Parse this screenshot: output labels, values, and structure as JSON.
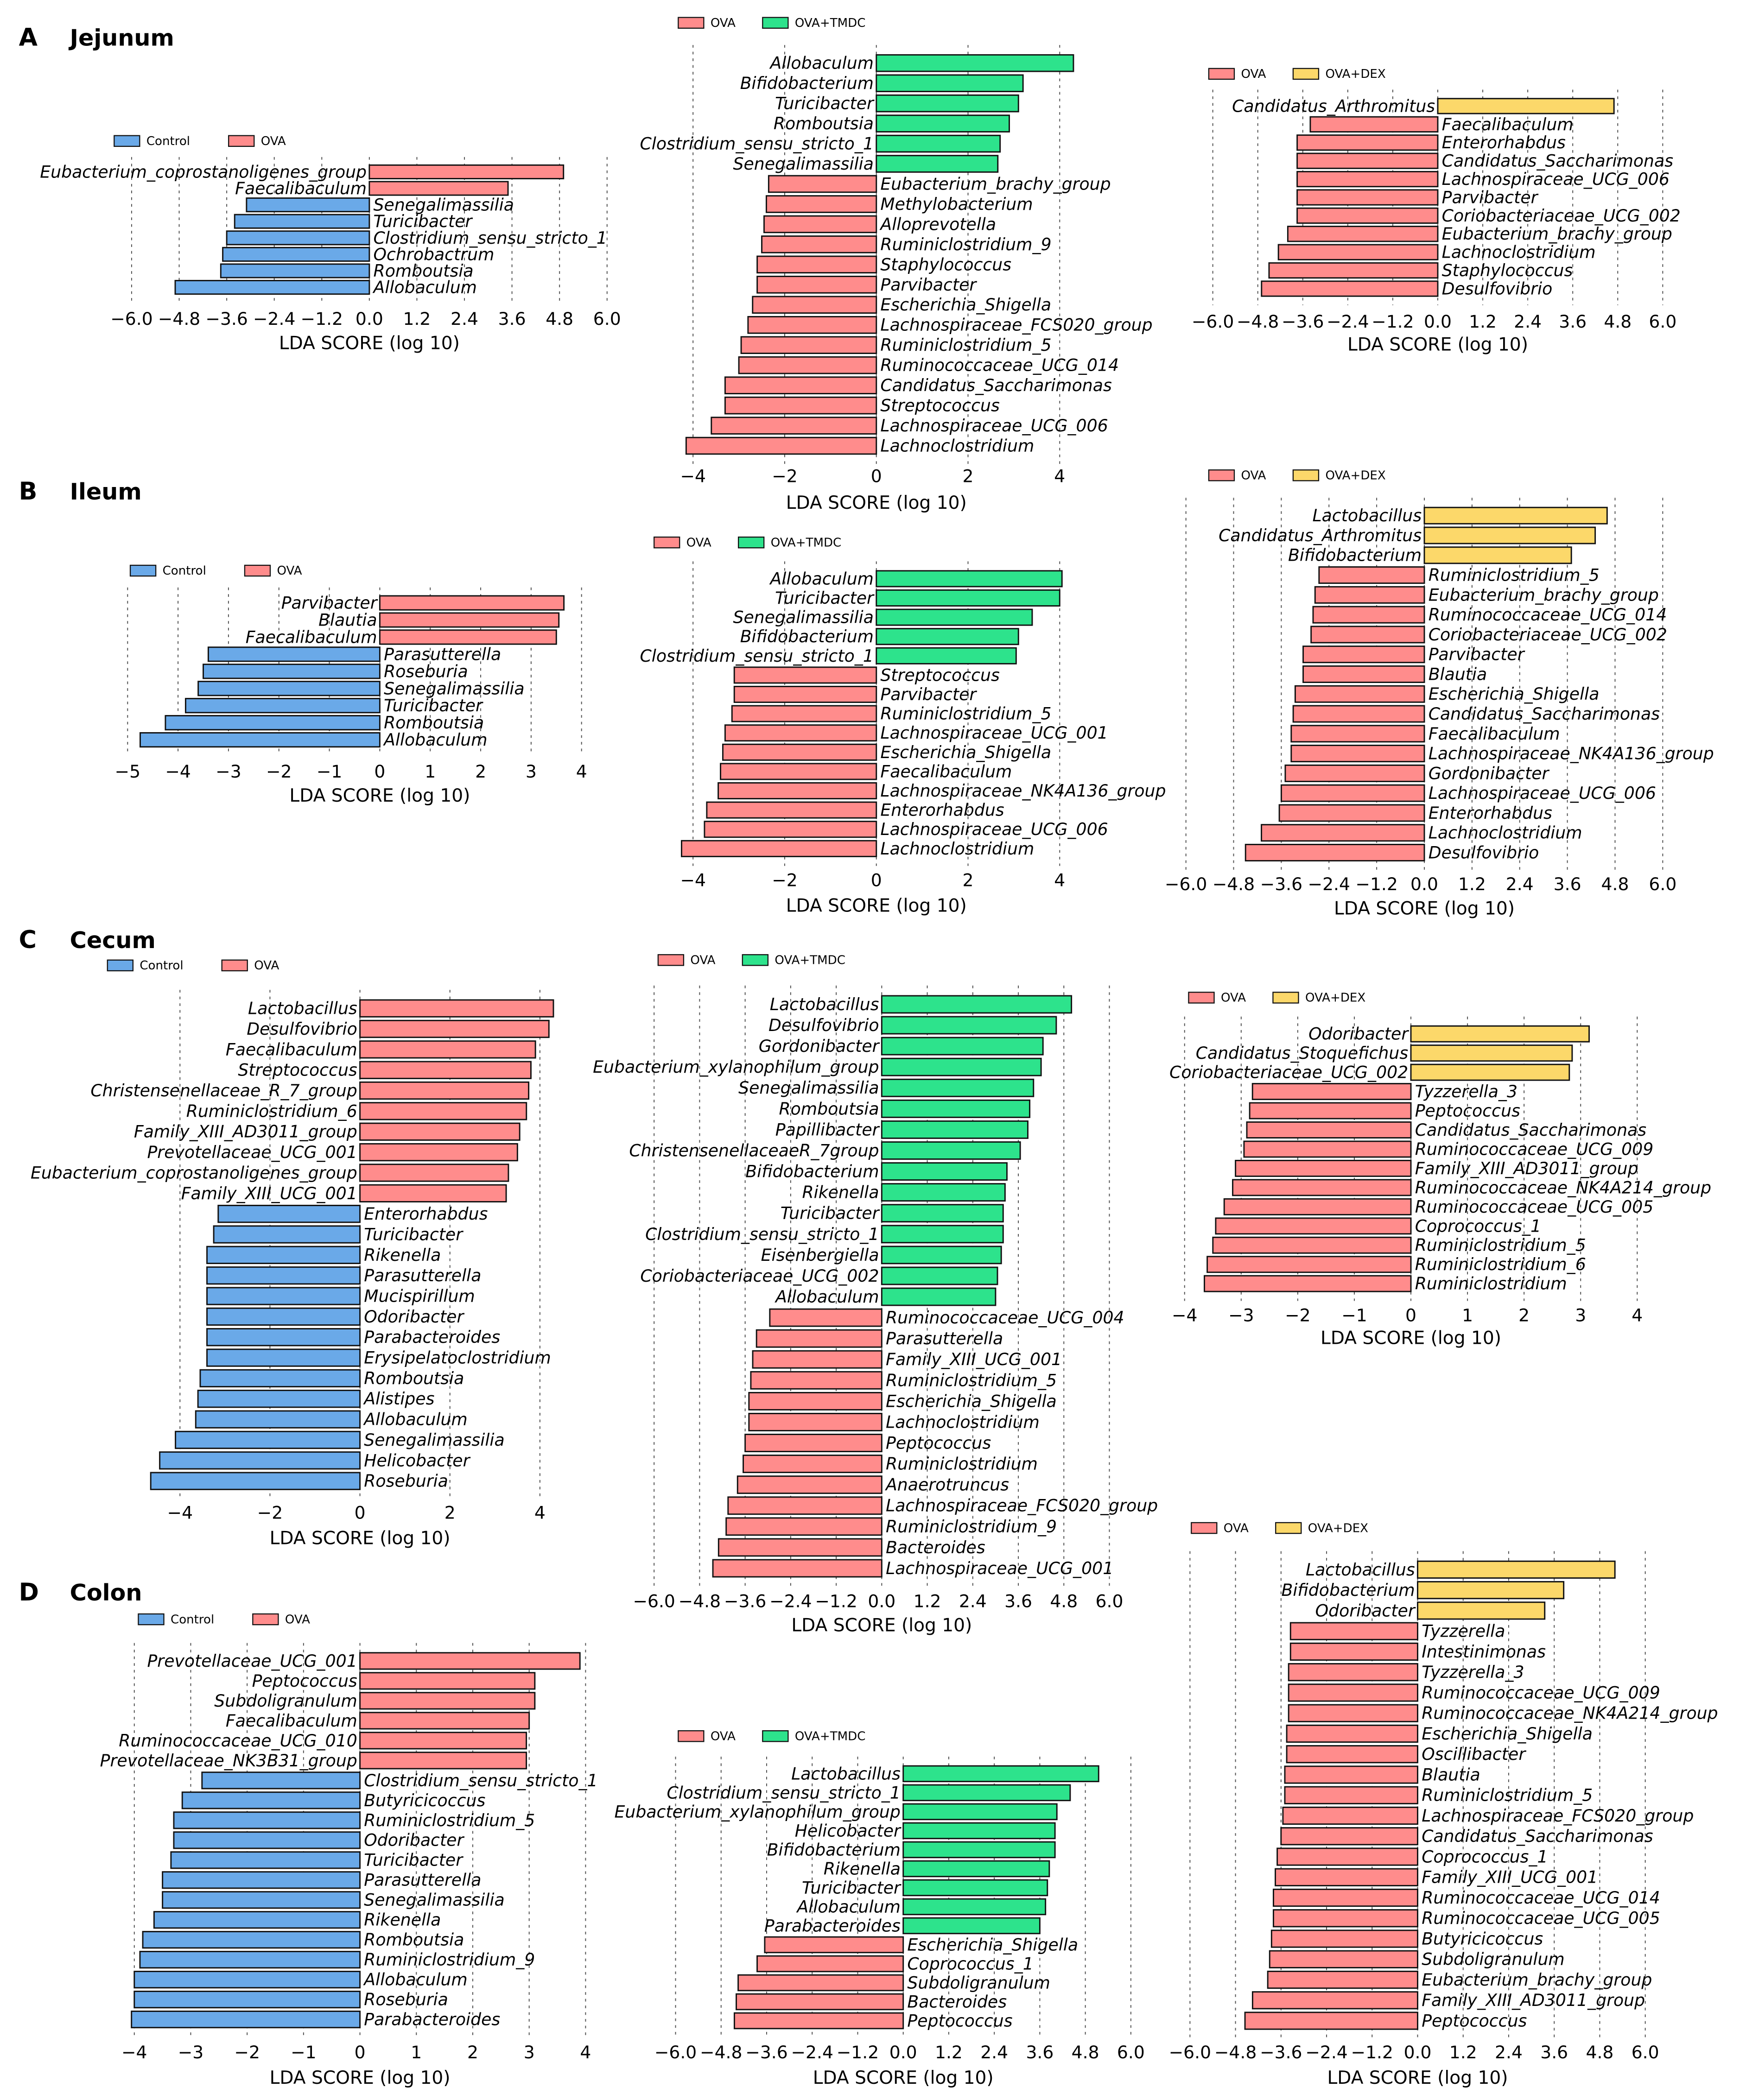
{
  "sections": [
    {
      "letter": "A",
      "name": "Jejunum"
    },
    {
      "letter": "B",
      "name": "Ileum"
    },
    {
      "letter": "C",
      "name": "Cecum"
    },
    {
      "letter": "D",
      "name": "Colon"
    }
  ],
  "colors": {
    "Control": "#6aa9e8",
    "OVA": "#ff8c8c",
    "OVA+TMDC": "#2de38c",
    "OVA+DEX": "#fcd86a"
  },
  "chart_data": [
    {
      "type": "bar",
      "section": "A",
      "legend": [
        "Control",
        "OVA"
      ],
      "xlabel": "LDA SCORE (log 10)",
      "ticks": [
        -6,
        -4.8,
        -3.6,
        -2.4,
        -1.2,
        0,
        1.2,
        2.4,
        3.6,
        4.8,
        6
      ],
      "tick_labels": [
        "−6.0",
        "−4.8",
        "−3.6",
        "−2.4",
        "−1.2",
        "0.0",
        "1.2",
        "2.4",
        "3.6",
        "4.8",
        "6.0"
      ],
      "categories": [
        "Eubacterium_coprostanoligenes_group",
        "Faecalibaculum",
        "Senegalimassilia",
        "Turicibacter",
        "Clostridium_sensu_stricto_1",
        "Ochrobactrum",
        "Romboutsia",
        "Allobaculum"
      ],
      "values": [
        4.9,
        3.5,
        -3.1,
        -3.4,
        -3.6,
        -3.7,
        -3.75,
        -4.9
      ]
    },
    {
      "type": "bar",
      "section": "A",
      "legend": [
        "OVA",
        "OVA+TMDC"
      ],
      "xlabel": "LDA SCORE (log 10)",
      "ticks": [
        -4,
        -2,
        0,
        2,
        4
      ],
      "tick_labels": [
        "−4",
        "−2",
        "0",
        "2",
        "4"
      ],
      "categories": [
        "Allobaculum",
        "Bifidobacterium",
        "Turicibacter",
        "Romboutsia",
        "Clostridium_sensu_stricto_1",
        "Senegalimassilia",
        "Eubacterium_brachy_group",
        "Methylobacterium",
        "Alloprevotella",
        "Ruminiclostridium_9",
        "Staphylococcus",
        "Parvibacter",
        "Escherichia_Shigella",
        "Lachnospiraceae_FCS020_group",
        "Ruminiclostridium_5",
        "Ruminococcaceae_UCG_014",
        "Candidatus_Saccharimonas",
        "Streptococcus",
        "Lachnospiraceae_UCG_006",
        "Lachnoclostridium"
      ],
      "values": [
        4.3,
        3.2,
        3.1,
        2.9,
        2.7,
        2.65,
        -2.35,
        -2.4,
        -2.45,
        -2.5,
        -2.6,
        -2.6,
        -2.7,
        -2.8,
        -2.95,
        -3.0,
        -3.3,
        -3.3,
        -3.6,
        -4.15
      ]
    },
    {
      "type": "bar",
      "section": "A",
      "legend": [
        "OVA",
        "OVA+DEX"
      ],
      "xlabel": "LDA SCORE (log 10)",
      "ticks": [
        -6,
        -4.8,
        -3.6,
        -2.4,
        -1.2,
        0,
        1.2,
        2.4,
        3.6,
        4.8,
        6
      ],
      "tick_labels": [
        "−6.0",
        "−4.8",
        "−3.6",
        "−2.4",
        "−1.2",
        "0.0",
        "1.2",
        "2.4",
        "3.6",
        "4.8",
        "6.0"
      ],
      "categories": [
        "Candidatus_Arthromitus",
        "Faecalibaculum",
        "Enterorhabdus",
        "Candidatus_Saccharimonas",
        "Lachnospiraceae_UCG_006",
        "Parvibacter",
        "Coriobacteriaceae_UCG_002",
        "Eubacterium_brachy_group",
        "Lachnoclostridium",
        "Staphylococcus",
        "Desulfovibrio"
      ],
      "values": [
        4.7,
        -3.4,
        -3.75,
        -3.75,
        -3.75,
        -3.75,
        -3.75,
        -4.0,
        -4.25,
        -4.5,
        -4.7
      ]
    },
    {
      "type": "bar",
      "section": "B",
      "legend": [
        "Control",
        "OVA"
      ],
      "xlabel": "LDA SCORE (log 10)",
      "ticks": [
        -5,
        -4,
        -3,
        -2,
        -1,
        0,
        1,
        2,
        3,
        4
      ],
      "tick_labels": [
        "−5",
        "−4",
        "−3",
        "−2",
        "−1",
        "0",
        "1",
        "2",
        "3",
        "4"
      ],
      "categories": [
        "Parvibacter",
        "Blautia",
        "Faecalibaculum",
        "Parasutterella",
        "Roseburia",
        "Senegalimassilia",
        "Turicibacter",
        "Romboutsia",
        "Allobaculum"
      ],
      "values": [
        3.65,
        3.55,
        3.5,
        -3.4,
        -3.5,
        -3.6,
        -3.85,
        -4.25,
        -4.75
      ]
    },
    {
      "type": "bar",
      "section": "B",
      "legend": [
        "OVA",
        "OVA+TMDC"
      ],
      "xlabel": "LDA SCORE (log 10)",
      "ticks": [
        -4,
        -2,
        0,
        2,
        4
      ],
      "tick_labels": [
        "−4",
        "−2",
        "0",
        "2",
        "4"
      ],
      "categories": [
        "Allobaculum",
        "Turicibacter",
        "Senegalimassilia",
        "Bifidobacterium",
        "Clostridium_sensu_stricto_1",
        "Streptococcus",
        "Parvibacter",
        "Ruminiclostridium_5",
        "Lachnospiraceae_UCG_001",
        "Escherichia_Shigella",
        "Faecalibaculum",
        "Lachnospiraceae_NK4A136_group",
        "Enterorhabdus",
        "Lachnospiraceae_UCG_006",
        "Lachnoclostridium"
      ],
      "values": [
        4.05,
        4.0,
        3.4,
        3.1,
        3.05,
        -3.1,
        -3.1,
        -3.15,
        -3.3,
        -3.35,
        -3.4,
        -3.45,
        -3.7,
        -3.75,
        -4.25
      ]
    },
    {
      "type": "bar",
      "section": "B",
      "legend": [
        "OVA",
        "OVA+DEX"
      ],
      "xlabel": "LDA SCORE (log 10)",
      "ticks": [
        -6,
        -4.8,
        -3.6,
        -2.4,
        -1.2,
        0,
        1.2,
        2.4,
        3.6,
        4.8,
        6
      ],
      "tick_labels": [
        "−6.0",
        "−4.8",
        "−3.6",
        "−2.4",
        "−1.2",
        "0.0",
        "1.2",
        "2.4",
        "3.6",
        "4.8",
        "6.0"
      ],
      "categories": [
        "Lactobacillus",
        "Candidatus_Arthromitus",
        "Bifidobacterium",
        "Ruminiclostridium_5",
        "Eubacterium_brachy_group",
        "Ruminococcaceae_UCG_014",
        "Coriobacteriaceae_UCG_002",
        "Parvibacter",
        "Blautia",
        "Escherichia_Shigella",
        "Candidatus_Saccharimonas",
        "Faecalibaculum",
        "Lachnospiraceae_NK4A136_group",
        "Gordonibacter",
        "Lachnospiraceae_UCG_006",
        "Enterorhabdus",
        "Lachnoclostridium",
        "Desulfovibrio"
      ],
      "values": [
        4.6,
        4.3,
        3.7,
        -2.65,
        -2.75,
        -2.8,
        -2.85,
        -3.05,
        -3.05,
        -3.25,
        -3.3,
        -3.35,
        -3.35,
        -3.5,
        -3.6,
        -3.65,
        -4.1,
        -4.5
      ]
    },
    {
      "type": "bar",
      "section": "C",
      "legend": [
        "Control",
        "OVA"
      ],
      "xlabel": "LDA SCORE (log 10)",
      "ticks": [
        -4,
        -2,
        0,
        2,
        4
      ],
      "tick_labels": [
        "−4",
        "−2",
        "0",
        "2",
        "4"
      ],
      "categories": [
        "Lactobacillus",
        "Desulfovibrio",
        "Faecalibaculum",
        "Streptococcus",
        "Christensenellaceae_R_7_group",
        "Ruminiclostridium_6",
        "Family_XIII_AD3011_group",
        "Prevotellaceae_UCG_001",
        "Eubacterium_coprostanoligenes_group",
        "Family_XIII_UCG_001",
        "Enterorhabdus",
        "Turicibacter",
        "Rikenella",
        "Parasutterella",
        "Mucispirillum",
        "Odoribacter",
        "Parabacteroides",
        "Erysipelatoclostridium",
        "Romboutsia",
        "Alistipes",
        "Allobaculum",
        "Senegalimassilia",
        "Helicobacter",
        "Roseburia"
      ],
      "values": [
        4.3,
        4.2,
        3.9,
        3.8,
        3.75,
        3.7,
        3.55,
        3.5,
        3.3,
        3.25,
        -3.15,
        -3.25,
        -3.4,
        -3.4,
        -3.4,
        -3.4,
        -3.4,
        -3.4,
        -3.55,
        -3.6,
        -3.65,
        -4.1,
        -4.45,
        -4.65
      ]
    },
    {
      "type": "bar",
      "section": "C",
      "legend": [
        "OVA",
        "OVA+TMDC"
      ],
      "xlabel": "LDA SCORE (log 10)",
      "ticks": [
        -6,
        -4.8,
        -3.6,
        -2.4,
        -1.2,
        0,
        1.2,
        2.4,
        3.6,
        4.8,
        6
      ],
      "tick_labels": [
        "−6.0",
        "−4.8",
        "−3.6",
        "−2.4",
        "−1.2",
        "0.0",
        "1.2",
        "2.4",
        "3.6",
        "4.8",
        "6.0"
      ],
      "categories": [
        "Lactobacillus",
        "Desulfovibrio",
        "Gordonibacter",
        "Eubacterium_xylanophilum_group",
        "Senegalimassilia",
        "Romboutsia",
        "Papillibacter",
        "ChristensenellaceaeR_7group",
        "Bifidobacterium",
        "Rikenella",
        "Turicibacter",
        "Clostridium_sensu_stricto_1",
        "Eisenbergiella",
        "Coriobacteriaceae_UCG_002",
        "Allobaculum",
        "Ruminococcaceae_UCG_004",
        "Parasutterella",
        "Family_XIII_UCG_001",
        "Ruminiclostridium_5",
        "Escherichia_Shigella",
        "Lachnoclostridium",
        "Peptococcus",
        "Ruminiclostridium",
        "Anaerotruncus",
        "Lachnospiraceae_FCS020_group",
        "Ruminiclostridium_9",
        "Bacteroides",
        "Lachnospiraceae_UCG_001"
      ],
      "values": [
        5.0,
        4.6,
        4.25,
        4.2,
        4.0,
        3.9,
        3.85,
        3.65,
        3.3,
        3.25,
        3.2,
        3.2,
        3.15,
        3.05,
        3.0,
        -2.95,
        -3.3,
        -3.4,
        -3.45,
        -3.5,
        -3.5,
        -3.6,
        -3.65,
        -3.8,
        -4.05,
        -4.1,
        -4.3,
        -4.45
      ]
    },
    {
      "type": "bar",
      "section": "C",
      "legend": [
        "OVA",
        "OVA+DEX"
      ],
      "xlabel": "LDA SCORE (log 10)",
      "ticks": [
        -4,
        -3,
        -2,
        -1,
        0,
        1,
        2,
        3,
        4
      ],
      "tick_labels": [
        "−4",
        "−3",
        "−2",
        "−1",
        "0",
        "1",
        "2",
        "3",
        "4"
      ],
      "categories": [
        "Odoribacter",
        "Candidatus_Stoquefichus",
        "Coriobacteriaceae_UCG_002",
        "Tyzzerella_3",
        "Peptococcus",
        "Candidatus_Saccharimonas",
        "Ruminococcaceae_UCG_009",
        "Family_XIII_AD3011_group",
        "Ruminococcaceae_NK4A214_group",
        "Ruminococcaceae_UCG_005",
        "Coprococcus_1",
        "Ruminiclostridium_5",
        "Ruminiclostridium_6",
        "Ruminiclostridium"
      ],
      "values": [
        3.15,
        2.85,
        2.8,
        -2.8,
        -2.85,
        -2.9,
        -2.95,
        -3.1,
        -3.15,
        -3.3,
        -3.45,
        -3.5,
        -3.6,
        -3.65
      ]
    },
    {
      "type": "bar",
      "section": "D",
      "legend": [
        "Control",
        "OVA"
      ],
      "xlabel": "LDA SCORE (log 10)",
      "ticks": [
        -4,
        -3,
        -2,
        -1,
        0,
        1,
        2,
        3,
        4
      ],
      "tick_labels": [
        "−4",
        "−3",
        "−2",
        "−1",
        "0",
        "1",
        "2",
        "3",
        "4"
      ],
      "categories": [
        "Prevotellaceae_UCG_001",
        "Peptococcus",
        "Subdoligranulum",
        "Faecalibaculum",
        "Ruminococcaceae_UCG_010",
        "Prevotellaceae_NK3B31_group",
        "Clostridium_sensu_stricto_1",
        "Butyricicoccus",
        "Ruminiclostridium_5",
        "Odoribacter",
        "Turicibacter",
        "Parasutterella",
        "Senegalimassilia",
        "Rikenella",
        "Romboutsia",
        "Ruminiclostridium_9",
        "Allobaculum",
        "Roseburia",
        "Parabacteroides"
      ],
      "values": [
        3.9,
        3.1,
        3.1,
        3.0,
        2.95,
        2.95,
        -2.8,
        -3.15,
        -3.3,
        -3.3,
        -3.35,
        -3.5,
        -3.5,
        -3.65,
        -3.85,
        -3.9,
        -4.0,
        -4.0,
        -4.05
      ]
    },
    {
      "type": "bar",
      "section": "D",
      "legend": [
        "OVA",
        "OVA+TMDC"
      ],
      "xlabel": "LDA SCORE (log 10)",
      "ticks": [
        -6,
        -4.8,
        -3.6,
        -2.4,
        -1.2,
        0,
        1.2,
        2.4,
        3.6,
        4.8,
        6
      ],
      "tick_labels": [
        "−6.0",
        "−4.8",
        "−3.6",
        "−2.4",
        "−1.2",
        "0.0",
        "1.2",
        "2.4",
        "3.6",
        "4.8",
        "6.0"
      ],
      "categories": [
        "Lactobacillus",
        "Clostridium_sensu_stricto_1",
        "Eubacterium_xylanophilum_group",
        "Helicobacter",
        "Bifidobacterium",
        "Rikenella",
        "Turicibacter",
        "Allobaculum",
        "Parabacteroides",
        "Escherichia_Shigella",
        "Coprococcus_1",
        "Subdoligranulum",
        "Bacteroides",
        "Peptococcus"
      ],
      "values": [
        5.15,
        4.4,
        4.05,
        4.0,
        4.0,
        3.85,
        3.8,
        3.75,
        3.6,
        -3.65,
        -3.85,
        -4.35,
        -4.4,
        -4.45
      ]
    },
    {
      "type": "bar",
      "section": "D",
      "legend": [
        "OVA",
        "OVA+DEX"
      ],
      "xlabel": "LDA SCORE (log 10)",
      "ticks": [
        -6,
        -4.8,
        -3.6,
        -2.4,
        -1.2,
        0,
        1.2,
        2.4,
        3.6,
        4.8,
        6
      ],
      "tick_labels": [
        "−6.0",
        "−4.8",
        "−3.6",
        "−2.4",
        "−1.2",
        "0.0",
        "1.2",
        "2.4",
        "3.6",
        "4.8",
        "6.0"
      ],
      "categories": [
        "Lactobacillus",
        "Bifidobacterium",
        "Odoribacter",
        "Tyzzerella",
        "Intestinimonas",
        "Tyzzerella_3",
        "Ruminococcaceae_UCG_009",
        "Ruminococcaceae_NK4A214_group",
        "Escherichia_Shigella",
        "Oscillibacter",
        "Blautia",
        "Ruminiclostridium_5",
        "Lachnospiraceae_FCS020_group",
        "Candidatus_Saccharimonas",
        "Coprococcus_1",
        "Family_XIII_UCG_001",
        "Ruminococcaceae_UCG_014",
        "Ruminococcaceae_UCG_005",
        "Butyricicoccus",
        "Subdoligranulum",
        "Eubacterium_brachy_group",
        "Family_XIII_AD3011_group",
        "Peptococcus"
      ],
      "values": [
        5.2,
        3.85,
        3.35,
        -3.35,
        -3.35,
        -3.4,
        -3.4,
        -3.4,
        -3.45,
        -3.45,
        -3.5,
        -3.5,
        -3.55,
        -3.6,
        -3.7,
        -3.75,
        -3.8,
        -3.8,
        -3.85,
        -3.9,
        -3.95,
        -4.35,
        -4.55
      ]
    }
  ]
}
